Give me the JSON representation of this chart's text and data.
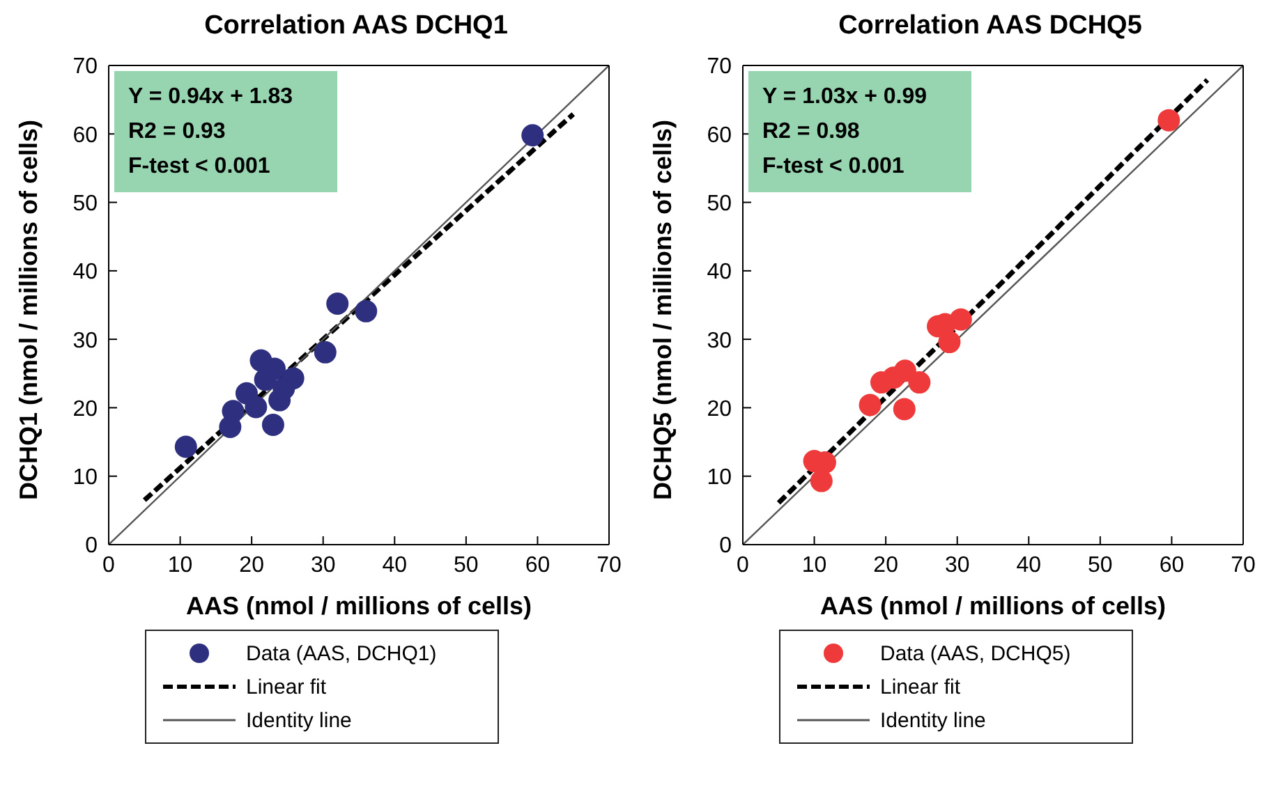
{
  "chart_data": [
    {
      "type": "scatter",
      "title": "Correlation AAS DCHQ1",
      "xlabel": "AAS (nmol / millions of cells)",
      "ylabel": "DCHQ1 (nmol / millions of cells)",
      "xlim": [
        0,
        70
      ],
      "ylim": [
        0,
        70
      ],
      "xticks": [
        0,
        10,
        20,
        30,
        40,
        50,
        60,
        70
      ],
      "yticks": [
        0,
        10,
        20,
        30,
        40,
        50,
        60,
        70
      ],
      "legend": "bottom",
      "annotations": [
        "Y = 0.94x + 1.83",
        "R2 = 0.93",
        "F-test < 0.001"
      ],
      "series": [
        {
          "name": "Data (AAS, DCHQ1)",
          "marker": "circle",
          "color": "#2e2f7f",
          "x": [
            10.8,
            59.3,
            32.0,
            36.0,
            30.3,
            21.3,
            23.2,
            25.8,
            24.5,
            19.3,
            17.4,
            17.0,
            23.0,
            23.9,
            20.6,
            21.9
          ],
          "values": [
            14.3,
            59.8,
            35.2,
            34.1,
            28.1,
            26.9,
            25.7,
            24.3,
            22.8,
            22.1,
            19.5,
            17.2,
            17.5,
            21.1,
            20.1,
            24.1
          ]
        },
        {
          "name": "Linear fit",
          "type": "line",
          "line_style": "dashed",
          "marker": "none",
          "color": "#000000",
          "x": [
            5,
            65
          ],
          "values": [
            6.5,
            62.9
          ]
        },
        {
          "name": "Identity line",
          "type": "line",
          "line_style": "solid",
          "marker": "none",
          "color": "#555555",
          "x": [
            0,
            70
          ],
          "values": [
            0,
            70
          ]
        }
      ]
    },
    {
      "type": "scatter",
      "title": "Correlation AAS DCHQ5",
      "xlabel": "AAS (nmol / millions of cells)",
      "ylabel": "DCHQ5 (nmol / millions of cells)",
      "xlim": [
        0,
        70
      ],
      "ylim": [
        0,
        70
      ],
      "xticks": [
        0,
        10,
        20,
        30,
        40,
        50,
        60,
        70
      ],
      "yticks": [
        0,
        10,
        20,
        30,
        40,
        50,
        60,
        70
      ],
      "legend": "bottom",
      "annotations": [
        "Y = 1.03x + 0.99",
        "R2 = 0.98",
        "F-test < 0.001"
      ],
      "series": [
        {
          "name": "Data (AAS, DCHQ5)",
          "marker": "circle",
          "color": "#ee3a3a",
          "x": [
            59.6,
            10.0,
            11.5,
            11.0,
            17.8,
            19.4,
            21.1,
            22.7,
            24.7,
            22.6,
            27.3,
            28.9,
            30.5,
            28.3
          ],
          "values": [
            62.0,
            12.2,
            12.0,
            9.3,
            20.4,
            23.7,
            24.4,
            25.4,
            23.7,
            19.8,
            31.9,
            29.6,
            32.9,
            32.2
          ]
        },
        {
          "name": "Linear fit",
          "type": "line",
          "line_style": "dashed",
          "marker": "none",
          "color": "#000000",
          "x": [
            5,
            65
          ],
          "values": [
            6.1,
            67.9
          ]
        },
        {
          "name": "Identity line",
          "type": "line",
          "line_style": "solid",
          "marker": "none",
          "color": "#555555",
          "x": [
            0,
            70
          ],
          "values": [
            0,
            70
          ]
        }
      ]
    }
  ]
}
